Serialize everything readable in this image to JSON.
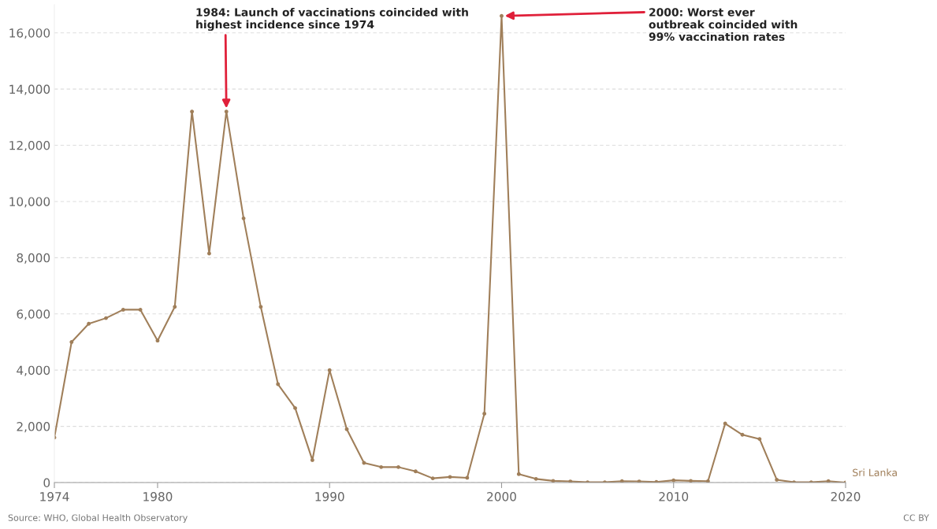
{
  "chart_data": {
    "type": "line",
    "x": [
      1974,
      1975,
      1976,
      1977,
      1978,
      1979,
      1980,
      1981,
      1982,
      1983,
      1984,
      1985,
      1986,
      1987,
      1988,
      1989,
      1990,
      1991,
      1992,
      1993,
      1994,
      1995,
      1996,
      1997,
      1998,
      1999,
      2000,
      2001,
      2002,
      2003,
      2004,
      2005,
      2006,
      2007,
      2008,
      2009,
      2010,
      2011,
      2012,
      2013,
      2014,
      2015,
      2016,
      2017,
      2018,
      2019,
      2020
    ],
    "series": [
      {
        "name": "Sri Lanka",
        "color": "#a07f5a",
        "values": [
          1600,
          5000,
          5650,
          5850,
          6150,
          6150,
          5050,
          6250,
          13200,
          8150,
          13200,
          9400,
          6250,
          3500,
          2650,
          800,
          4000,
          1900,
          700,
          550,
          550,
          400,
          150,
          200,
          170,
          2450,
          16600,
          300,
          130,
          60,
          40,
          10,
          10,
          50,
          40,
          20,
          80,
          60,
          50,
          2100,
          1700,
          1550,
          100,
          10,
          10,
          50,
          0
        ]
      }
    ],
    "xlim": [
      1974,
      2020
    ],
    "xticks": [
      1974,
      1980,
      1990,
      2000,
      2010,
      2020
    ],
    "ylim": [
      0,
      17000
    ],
    "yticks": [
      {
        "value": 0,
        "label": "0"
      },
      {
        "value": 2000,
        "label": "2,000"
      },
      {
        "value": 4000,
        "label": "4,000"
      },
      {
        "value": 6000,
        "label": "6,000"
      },
      {
        "value": 8000,
        "label": "8,000"
      },
      {
        "value": 10000,
        "label": "10,000"
      },
      {
        "value": 12000,
        "label": "12,000"
      },
      {
        "value": 14000,
        "label": "14,000"
      },
      {
        "value": 16000,
        "label": "16,000"
      }
    ],
    "grid": "y",
    "marker": "circle",
    "line_style": "solid",
    "legend": false,
    "annotations": [
      {
        "text": "1984: Launch of vaccinations coincided with\nhighest incidence since 1974",
        "x": 1984,
        "y": 13200
      },
      {
        "text": "2000: Worst ever\noutbreak coincided with\n99% vaccination rates",
        "x": 2000,
        "y": 16600
      },
      "Source: WHO, Global Health Observatory",
      "CC BY"
    ]
  }
}
